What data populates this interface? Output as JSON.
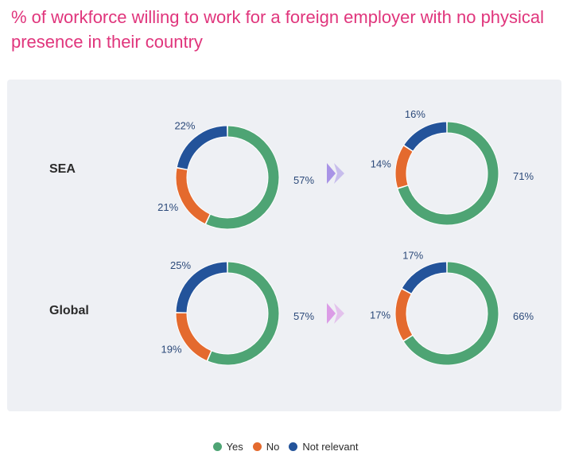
{
  "title": "% of workforce willing to work for a foreign employer with no physical presence in their country",
  "colors": {
    "yes": "#4ea474",
    "no": "#e46a2e",
    "not_relevant": "#23539a",
    "arrow_sea": "#a893e6",
    "arrow_global": "#db9ce6",
    "title": "#e0357c",
    "panel": "#eef0f4"
  },
  "legend": [
    {
      "key": "yes",
      "label": "Yes"
    },
    {
      "key": "no",
      "label": "No"
    },
    {
      "key": "not_relevant",
      "label": "Not relevant"
    }
  ],
  "rows": [
    {
      "label": "SEA"
    },
    {
      "label": "Global"
    }
  ],
  "chart_data": {
    "type": "pie",
    "variant": "donut",
    "legend": [
      "Yes",
      "No",
      "Not relevant"
    ],
    "charts": [
      {
        "row": "SEA",
        "column": 1,
        "values": {
          "Yes": 57,
          "No": 21,
          "Not relevant": 22
        },
        "labels": {
          "Yes": "57%",
          "No": "21%",
          "Not relevant": "22%"
        }
      },
      {
        "row": "SEA",
        "column": 2,
        "values": {
          "Yes": 71,
          "No": 14,
          "Not relevant": 16
        },
        "labels": {
          "Yes": "71%",
          "No": "14%",
          "Not relevant": "16%"
        }
      },
      {
        "row": "Global",
        "column": 1,
        "values": {
          "Yes": 57,
          "No": 19,
          "Not relevant": 25
        },
        "labels": {
          "Yes": "57%",
          "No": "19%",
          "Not relevant": "25%"
        }
      },
      {
        "row": "Global",
        "column": 2,
        "values": {
          "Yes": 66,
          "No": 17,
          "Not relevant": 17
        },
        "labels": {
          "Yes": "66%",
          "No": "17%",
          "Not relevant": "17%"
        }
      }
    ]
  }
}
